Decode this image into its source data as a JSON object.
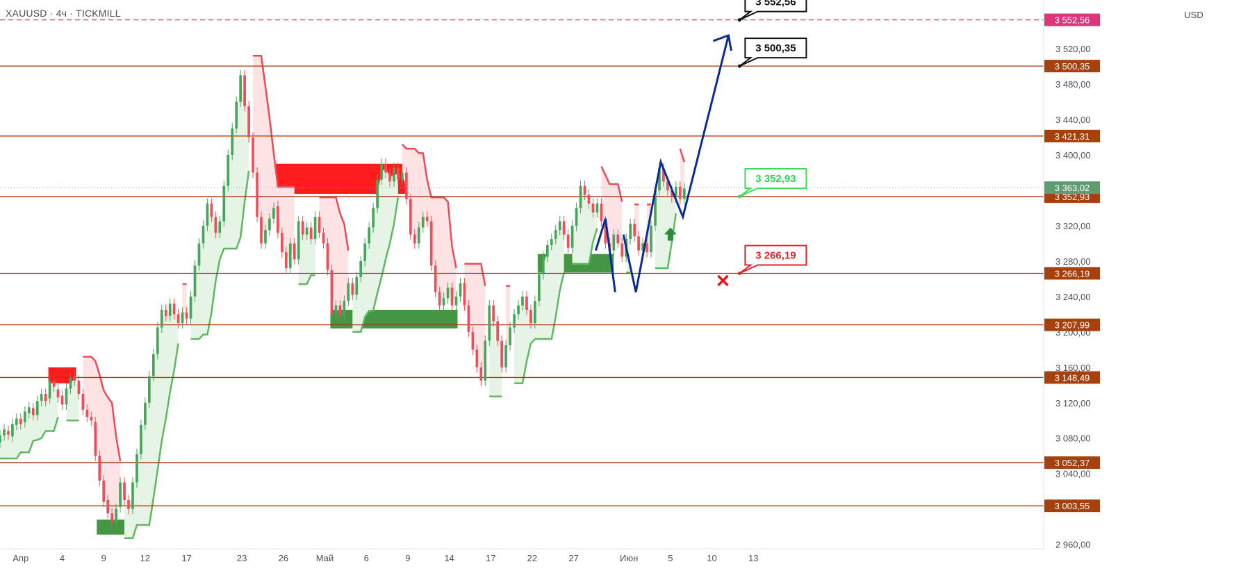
{
  "header": {
    "symbol_title": "XAUUSD · 4ч · TICKMILL",
    "currency": "USD"
  },
  "colors": {
    "level_line": "#a33a12",
    "level_label_bg": "#a6400d",
    "target_line": "#e0357a",
    "up": "#43a047",
    "down": "#e53935",
    "forecast": "#0d2c8f",
    "supply_zone": "#ff1010",
    "demand_zone": "#3a8f3a",
    "trail_red_fill": "#fde3e3",
    "trail_green_fill": "#e6f4e6"
  },
  "chart_data": {
    "type": "candlestick",
    "instrument": "XAUUSD",
    "timeframe": "4ч",
    "y_range": [
      2955,
      3575
    ],
    "y_ticks": [
      "3 520,00",
      "3 480,00",
      "3 440,00",
      "3 400,00",
      "3 320,00",
      "3 280,00",
      "3 240,00",
      "3 200,00",
      "3 160,00",
      "3 120,00",
      "3 080,00",
      "3 040,00",
      "2 960,00"
    ],
    "y_tick_values": [
      3520,
      3480,
      3440,
      3400,
      3320,
      3280,
      3240,
      3200,
      3160,
      3120,
      3080,
      3040,
      2960
    ],
    "x_range": [
      -1.5,
      74
    ],
    "x_ticks": [
      {
        "label": "Апр",
        "t": 0
      },
      {
        "label": "4",
        "t": 3
      },
      {
        "label": "9",
        "t": 6
      },
      {
        "label": "12",
        "t": 9
      },
      {
        "label": "17",
        "t": 12
      },
      {
        "label": "23",
        "t": 16
      },
      {
        "label": "26",
        "t": 19
      },
      {
        "label": "Май",
        "t": 22
      },
      {
        "label": "6",
        "t": 25
      },
      {
        "label": "9",
        "t": 28
      },
      {
        "label": "14",
        "t": 31
      },
      {
        "label": "17",
        "t": 34
      },
      {
        "label": "22",
        "t": 37
      },
      {
        "label": "27",
        "t": 40
      },
      {
        "label": "Июн",
        "t": 44
      },
      {
        "label": "5",
        "t": 47
      },
      {
        "label": "10",
        "t": 50
      },
      {
        "label": "13",
        "t": 53
      }
    ],
    "price_levels": [
      {
        "value": 3500.35,
        "label": "3 500,35"
      },
      {
        "value": 3421.31,
        "label": "3 421,31"
      },
      {
        "value": 3352.93,
        "label": "3 352,93"
      },
      {
        "value": 3266.19,
        "label": "3 266,19"
      },
      {
        "value": 3207.99,
        "label": "3 207,99"
      },
      {
        "value": 3148.49,
        "label": "3 148,49"
      },
      {
        "value": 3052.37,
        "label": "3 052,37"
      },
      {
        "value": 3003.55,
        "label": "3 003,55"
      }
    ],
    "target_level": {
      "value": 3552.56,
      "label": "3 552,56"
    },
    "current_price": {
      "value": 3363.02,
      "label": "3 363,02"
    },
    "callouts": [
      {
        "text": "3 552,56",
        "t": 51.5,
        "value": 3552.56,
        "style": "black"
      },
      {
        "text": "3 500,35",
        "t": 51.5,
        "value": 3500.35,
        "style": "black"
      },
      {
        "text": "3 352,93",
        "t": 51.5,
        "value": 3352.93,
        "style": "green"
      },
      {
        "text": "3 266,19",
        "t": 51.5,
        "value": 3266.19,
        "style": "red"
      }
    ],
    "stop_marker": {
      "t": 50.8,
      "value": 3258
    },
    "entry_arrow": {
      "t": 47,
      "value": 3318
    },
    "zones": [
      {
        "type": "supply",
        "t0": 2,
        "t1": 4,
        "lo": 3142,
        "hi": 3160
      },
      {
        "type": "supply",
        "t0": 17.3,
        "t1": 27.8,
        "lo": 3356,
        "hi": 3390
      },
      {
        "type": "demand",
        "t0": 5.5,
        "t1": 7.6,
        "lo": 2971,
        "hi": 2988
      },
      {
        "type": "demand",
        "t0": 22.4,
        "t1": 31.6,
        "lo": 3204,
        "hi": 3225
      },
      {
        "type": "demand",
        "t0": 37.4,
        "t1": 42.9,
        "lo": 3267,
        "hi": 3288
      }
    ],
    "candles": [
      [
        -1.5,
        3075,
        3083
      ],
      [
        -1.2,
        3083,
        3090
      ],
      [
        -0.9,
        3088,
        3084
      ],
      [
        -0.6,
        3082,
        3096
      ],
      [
        -0.3,
        3095,
        3102
      ],
      [
        0.0,
        3102,
        3096
      ],
      [
        0.3,
        3098,
        3110
      ],
      [
        0.6,
        3108,
        3115
      ],
      [
        0.9,
        3114,
        3106
      ],
      [
        1.2,
        3106,
        3122
      ],
      [
        1.5,
        3122,
        3130
      ],
      [
        1.8,
        3130,
        3122
      ],
      [
        2.1,
        3125,
        3145
      ],
      [
        2.4,
        3145,
        3138
      ],
      [
        2.7,
        3135,
        3126
      ],
      [
        3.0,
        3128,
        3118
      ],
      [
        3.3,
        3118,
        3136
      ],
      [
        3.6,
        3136,
        3148
      ],
      [
        3.9,
        3150,
        3145
      ],
      [
        4.2,
        3145,
        3130
      ],
      [
        4.5,
        3130,
        3112
      ],
      [
        4.8,
        3112,
        3104
      ],
      [
        5.1,
        3104,
        3100
      ],
      [
        5.4,
        3098,
        3060
      ],
      [
        5.7,
        3060,
        3032
      ],
      [
        6.0,
        3032,
        3008
      ],
      [
        6.3,
        3010,
        2995
      ],
      [
        6.6,
        2995,
        2985
      ],
      [
        6.9,
        2985,
        3000
      ],
      [
        7.2,
        3002,
        3030
      ],
      [
        7.5,
        3030,
        3010
      ],
      [
        7.8,
        3010,
        3000
      ],
      [
        8.1,
        3000,
        3030
      ],
      [
        8.4,
        3030,
        3062
      ],
      [
        8.7,
        3062,
        3095
      ],
      [
        9.0,
        3095,
        3120
      ],
      [
        9.3,
        3120,
        3150
      ],
      [
        9.6,
        3150,
        3175
      ],
      [
        9.9,
        3175,
        3205
      ],
      [
        10.2,
        3205,
        3225
      ],
      [
        10.5,
        3225,
        3218
      ],
      [
        10.8,
        3218,
        3232
      ],
      [
        11.1,
        3232,
        3220
      ],
      [
        11.4,
        3220,
        3210
      ],
      [
        11.7,
        3210,
        3222
      ],
      [
        12.0,
        3222,
        3215
      ],
      [
        12.3,
        3215,
        3240
      ],
      [
        12.6,
        3240,
        3275
      ],
      [
        12.9,
        3275,
        3300
      ],
      [
        13.2,
        3300,
        3320
      ],
      [
        13.5,
        3320,
        3345
      ],
      [
        13.8,
        3345,
        3330
      ],
      [
        14.1,
        3330,
        3312
      ],
      [
        14.4,
        3312,
        3325
      ],
      [
        14.7,
        3325,
        3365
      ],
      [
        15.0,
        3365,
        3400
      ],
      [
        15.3,
        3400,
        3430
      ],
      [
        15.6,
        3430,
        3460
      ],
      [
        15.9,
        3460,
        3490
      ],
      [
        16.2,
        3490,
        3455
      ],
      [
        16.5,
        3455,
        3420
      ],
      [
        16.8,
        3420,
        3380
      ],
      [
        17.1,
        3380,
        3330
      ],
      [
        17.4,
        3330,
        3300
      ],
      [
        17.7,
        3300,
        3315
      ],
      [
        18.0,
        3315,
        3328
      ],
      [
        18.3,
        3328,
        3340
      ],
      [
        18.6,
        3342,
        3312
      ],
      [
        18.9,
        3312,
        3290
      ],
      [
        19.2,
        3290,
        3272
      ],
      [
        19.5,
        3272,
        3300
      ],
      [
        19.8,
        3300,
        3282
      ],
      [
        20.1,
        3282,
        3325
      ],
      [
        20.4,
        3325,
        3310
      ],
      [
        20.7,
        3310,
        3318
      ],
      [
        21.0,
        3318,
        3305
      ],
      [
        21.3,
        3305,
        3330
      ],
      [
        21.6,
        3330,
        3312
      ],
      [
        21.9,
        3312,
        3300
      ],
      [
        22.2,
        3300,
        3270
      ],
      [
        22.5,
        3270,
        3220
      ],
      [
        22.8,
        3220,
        3230
      ],
      [
        23.1,
        3230,
        3218
      ],
      [
        23.4,
        3218,
        3235
      ],
      [
        23.7,
        3235,
        3255
      ],
      [
        24.0,
        3255,
        3242
      ],
      [
        24.3,
        3242,
        3262
      ],
      [
        24.6,
        3262,
        3280
      ],
      [
        24.9,
        3280,
        3300
      ],
      [
        25.2,
        3300,
        3318
      ],
      [
        25.5,
        3318,
        3340
      ],
      [
        25.8,
        3340,
        3372
      ],
      [
        26.1,
        3372,
        3390
      ],
      [
        26.4,
        3390,
        3380
      ],
      [
        26.7,
        3380,
        3370
      ],
      [
        27.0,
        3370,
        3385
      ],
      [
        27.3,
        3385,
        3372
      ],
      [
        27.6,
        3372,
        3380
      ],
      [
        27.9,
        3380,
        3350
      ],
      [
        28.2,
        3350,
        3310
      ],
      [
        28.5,
        3310,
        3300
      ],
      [
        28.8,
        3300,
        3318
      ],
      [
        29.1,
        3318,
        3330
      ],
      [
        29.4,
        3330,
        3325
      ],
      [
        29.7,
        3325,
        3275
      ],
      [
        30.0,
        3275,
        3245
      ],
      [
        30.3,
        3245,
        3230
      ],
      [
        30.6,
        3230,
        3238
      ],
      [
        30.9,
        3238,
        3250
      ],
      [
        31.2,
        3250,
        3230
      ],
      [
        31.5,
        3230,
        3240
      ],
      [
        31.8,
        3240,
        3255
      ],
      [
        32.1,
        3255,
        3230
      ],
      [
        32.4,
        3230,
        3200
      ],
      [
        32.7,
        3200,
        3180
      ],
      [
        33.0,
        3180,
        3160
      ],
      [
        33.3,
        3160,
        3145
      ],
      [
        33.6,
        3145,
        3190
      ],
      [
        33.9,
        3190,
        3230
      ],
      [
        34.2,
        3230,
        3212
      ],
      [
        34.5,
        3212,
        3190
      ],
      [
        34.8,
        3190,
        3160
      ],
      [
        35.1,
        3160,
        3185
      ],
      [
        35.4,
        3185,
        3205
      ],
      [
        35.7,
        3205,
        3220
      ],
      [
        36.0,
        3220,
        3230
      ],
      [
        36.3,
        3230,
        3240
      ],
      [
        36.6,
        3240,
        3225
      ],
      [
        36.9,
        3225,
        3210
      ],
      [
        37.2,
        3210,
        3235
      ],
      [
        37.5,
        3235,
        3265
      ],
      [
        37.8,
        3265,
        3285
      ],
      [
        38.1,
        3285,
        3298
      ],
      [
        38.4,
        3298,
        3305
      ],
      [
        38.7,
        3305,
        3315
      ],
      [
        39.0,
        3315,
        3325
      ],
      [
        39.3,
        3325,
        3310
      ],
      [
        39.6,
        3310,
        3295
      ],
      [
        39.9,
        3295,
        3320
      ],
      [
        40.2,
        3320,
        3340
      ],
      [
        40.5,
        3340,
        3365
      ],
      [
        40.8,
        3365,
        3355
      ],
      [
        41.1,
        3355,
        3345
      ],
      [
        41.4,
        3345,
        3335
      ],
      [
        41.7,
        3335,
        3345
      ],
      [
        42.0,
        3345,
        3325
      ],
      [
        42.3,
        3325,
        3300
      ],
      [
        42.6,
        3300,
        3292
      ],
      [
        42.9,
        3292,
        3310
      ],
      [
        43.2,
        3310,
        3300
      ],
      [
        43.5,
        3300,
        3285
      ],
      [
        43.8,
        3285,
        3305
      ],
      [
        44.1,
        3305,
        3322
      ],
      [
        44.4,
        3322,
        3308
      ],
      [
        44.7,
        3308,
        3292
      ],
      [
        45.0,
        3292,
        3300
      ],
      [
        45.3,
        3300,
        3290
      ],
      [
        45.6,
        3290,
        3320
      ],
      [
        45.9,
        3320,
        3360
      ],
      [
        46.2,
        3360,
        3385
      ],
      [
        46.5,
        3385,
        3370
      ],
      [
        46.8,
        3370,
        3360
      ],
      [
        47.1,
        3360,
        3352
      ],
      [
        47.4,
        3352,
        3364
      ],
      [
        47.7,
        3364,
        3350
      ],
      [
        48.0,
        3350,
        3362
      ]
    ]
  }
}
